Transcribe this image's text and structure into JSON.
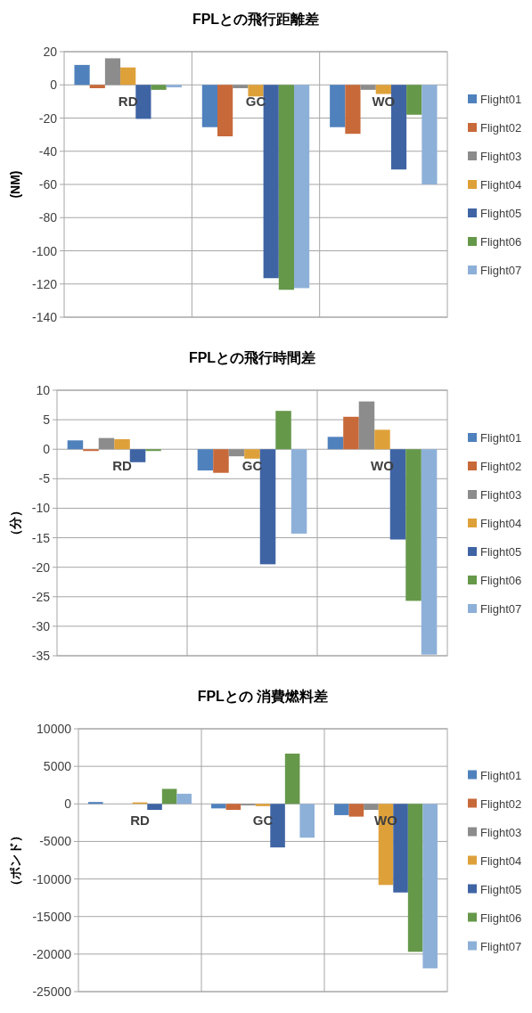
{
  "chart_data": [
    {
      "type": "bar",
      "title": "FPLとの飛行距離差",
      "ylabel": "(NM)",
      "categories": [
        "RD",
        "GC",
        "WO"
      ],
      "ylim": [
        -140,
        20
      ],
      "yticks": [
        -140,
        -120,
        -100,
        -80,
        -60,
        -40,
        -20,
        0,
        20
      ],
      "grid": true,
      "legend": "right",
      "series": [
        {
          "name": "Flight01",
          "color": "#4f81bd",
          "values": [
            12,
            -25.5,
            -25.5
          ]
        },
        {
          "name": "Flight02",
          "color": "#c8693a",
          "values": [
            -2,
            -31,
            -29.5
          ]
        },
        {
          "name": "Flight03",
          "color": "#8c8c8c",
          "values": [
            16,
            -2,
            -3
          ]
        },
        {
          "name": "Flight04",
          "color": "#dea13a",
          "values": [
            10.5,
            -7,
            -5.5
          ]
        },
        {
          "name": "Flight05",
          "color": "#3f64a4",
          "values": [
            -20.5,
            -116.5,
            -51
          ]
        },
        {
          "name": "Flight06",
          "color": "#66984a",
          "values": [
            -3,
            -123.5,
            -18
          ]
        },
        {
          "name": "Flight07",
          "color": "#8db0d8",
          "values": [
            -1.5,
            -122.5,
            -60
          ]
        }
      ]
    },
    {
      "type": "bar",
      "title": "FPLとの飛行時間差",
      "ylabel": "（分）",
      "categories": [
        "RD",
        "GC",
        "WO"
      ],
      "ylim": [
        -35,
        10
      ],
      "yticks": [
        -35,
        -30,
        -25,
        -20,
        -15,
        -10,
        -5,
        0,
        5,
        10
      ],
      "grid": true,
      "legend": "right",
      "series": [
        {
          "name": "Flight01",
          "color": "#4f81bd",
          "values": [
            1.5,
            -3.6,
            2.1
          ]
        },
        {
          "name": "Flight02",
          "color": "#c8693a",
          "values": [
            -0.3,
            -4,
            5.5
          ]
        },
        {
          "name": "Flight03",
          "color": "#8c8c8c",
          "values": [
            1.9,
            -1.2,
            8.1
          ]
        },
        {
          "name": "Flight04",
          "color": "#dea13a",
          "values": [
            1.7,
            -1.6,
            3.3
          ]
        },
        {
          "name": "Flight05",
          "color": "#3f64a4",
          "values": [
            -2.2,
            -19.5,
            -15.3
          ]
        },
        {
          "name": "Flight06",
          "color": "#66984a",
          "values": [
            -0.3,
            6.5,
            -25.7
          ]
        },
        {
          "name": "Flight07",
          "color": "#8db0d8",
          "values": [
            0,
            -14.3,
            -34.8
          ]
        }
      ]
    },
    {
      "type": "bar",
      "title": "FPLとの 消費燃料差",
      "ylabel": "（ポンド）",
      "categories": [
        "RD",
        "GC",
        "WO"
      ],
      "ylim": [
        -25000,
        10000
      ],
      "yticks": [
        -25000,
        -20000,
        -15000,
        -10000,
        -5000,
        0,
        5000,
        10000
      ],
      "grid": true,
      "legend": "right",
      "series": [
        {
          "name": "Flight01",
          "color": "#4f81bd",
          "values": [
            250,
            -600,
            -1500
          ]
        },
        {
          "name": "Flight02",
          "color": "#c8693a",
          "values": [
            0,
            -800,
            -1700
          ]
        },
        {
          "name": "Flight03",
          "color": "#8c8c8c",
          "values": [
            0,
            -200,
            -800
          ]
        },
        {
          "name": "Flight04",
          "color": "#dea13a",
          "values": [
            200,
            -300,
            -10800
          ]
        },
        {
          "name": "Flight05",
          "color": "#3f64a4",
          "values": [
            -800,
            -5800,
            -11800
          ]
        },
        {
          "name": "Flight06",
          "color": "#66984a",
          "values": [
            2000,
            6700,
            -19700
          ]
        },
        {
          "name": "Flight07",
          "color": "#8db0d8",
          "values": [
            1350,
            -4500,
            -21900
          ]
        }
      ]
    }
  ]
}
